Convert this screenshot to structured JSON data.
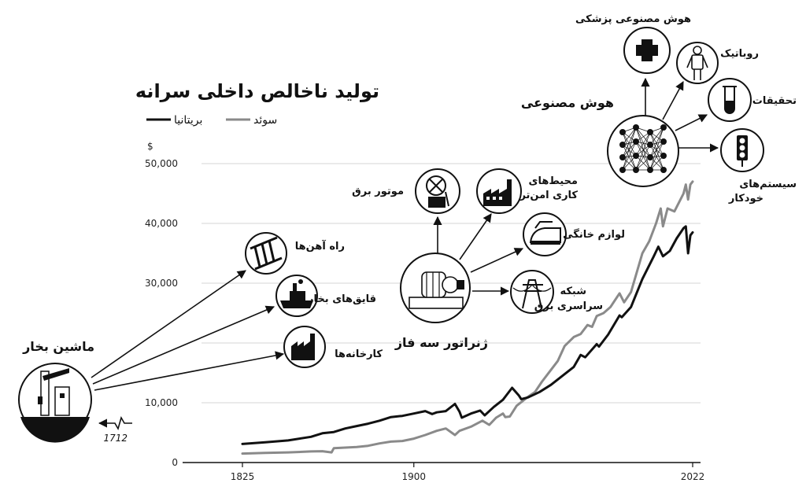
{
  "title": "تولید ناخالص داخلی سرانه",
  "legend": [
    {
      "name": "سوئد",
      "color": "#8a8a8a"
    },
    {
      "name": "بریتانیا",
      "color": "#111111"
    }
  ],
  "currency_label": "$",
  "chart_data": {
    "type": "line",
    "title": "تولید ناخالص داخلی سرانه",
    "xlabel": "",
    "ylabel": "$",
    "xlim": [
      1825,
      2022
    ],
    "ylim": [
      0,
      52000
    ],
    "grid": true,
    "legend_position": "top-left",
    "y_ticks": [
      0,
      10000,
      20000,
      30000,
      40000,
      50000
    ],
    "y_tick_labels": [
      "0",
      "10,000",
      "",
      "30,000",
      "40,000",
      "50,000"
    ],
    "x_ticks": [
      1825,
      1900,
      2022
    ],
    "x_tick_labels": [
      "1825",
      "1900",
      "2022"
    ],
    "series": [
      {
        "name": "سوئد",
        "color": "#8a8a8a",
        "x": [
          1825,
          1835,
          1845,
          1855,
          1860,
          1864,
          1865,
          1870,
          1875,
          1880,
          1885,
          1890,
          1895,
          1900,
          1905,
          1910,
          1914,
          1918,
          1920,
          1925,
          1930,
          1933,
          1936,
          1939,
          1940,
          1942,
          1945,
          1950,
          1953,
          1956,
          1960,
          1963,
          1966,
          1970,
          1973,
          1976,
          1978,
          1980,
          1983,
          1986,
          1990,
          1992,
          1995,
          2000,
          2003,
          2006,
          2008,
          2009,
          2011,
          2014,
          2016,
          2018,
          2019,
          2020,
          2021,
          2022
        ],
        "y": [
          1500,
          1600,
          1700,
          1850,
          1900,
          1700,
          2400,
          2500,
          2600,
          2800,
          3200,
          3500,
          3600,
          4000,
          4600,
          5300,
          5700,
          4600,
          5300,
          6000,
          7000,
          6300,
          7500,
          8200,
          7600,
          7700,
          9500,
          11000,
          11800,
          13500,
          15500,
          17000,
          19500,
          21000,
          21500,
          23000,
          22700,
          24500,
          25000,
          26000,
          28300,
          26800,
          28500,
          35000,
          37000,
          40000,
          42500,
          39500,
          42500,
          42000,
          43500,
          45000,
          46500,
          44000,
          46500,
          47000
        ]
      },
      {
        "name": "بریتانیا",
        "color": "#111111",
        "x": [
          1825,
          1835,
          1845,
          1855,
          1860,
          1865,
          1870,
          1875,
          1880,
          1885,
          1890,
          1895,
          1900,
          1905,
          1908,
          1910,
          1914,
          1918,
          1920,
          1921,
          1925,
          1929,
          1931,
          1935,
          1939,
          1940,
          1943,
          1946,
          1947,
          1950,
          1955,
          1960,
          1965,
          1970,
          1973,
          1975,
          1980,
          1981,
          1985,
          1990,
          1991,
          1995,
          2000,
          2005,
          2007,
          2009,
          2012,
          2015,
          2018,
          2019,
          2020,
          2021,
          2022
        ],
        "y": [
          3100,
          3400,
          3700,
          4300,
          4900,
          5100,
          5700,
          6100,
          6500,
          7000,
          7600,
          7800,
          8200,
          8600,
          8100,
          8400,
          8600,
          9800,
          8500,
          7500,
          8200,
          8700,
          7900,
          9300,
          10500,
          11000,
          12500,
          11200,
          10600,
          10900,
          11800,
          13000,
          14500,
          16000,
          18000,
          17600,
          19800,
          19400,
          21400,
          24600,
          24300,
          26000,
          30700,
          34500,
          36100,
          34500,
          35400,
          37500,
          39200,
          39500,
          35000,
          38000,
          38500
        ]
      }
    ]
  },
  "annotations": {
    "steam_engine": "ماشین بخار",
    "year_1712": "1712",
    "railways": "راه آهن‌ها",
    "steamboats": "قایق‌های بخار",
    "factories": "کارخانه‌ها",
    "three_phase": "ژنراتور سه فاز",
    "electric_motor": "موتور برق",
    "safe_work_1": "محیط‌های",
    "safe_work_2": "کاری امن‌تر",
    "appliances": "لوازم خانگی",
    "grid_1": "شبکه",
    "grid_2": "سراسری برق",
    "ai": "هوش مصنوعی",
    "ai_medicine": "هوش مصنوعی پزشکی",
    "robotics": "روباتیک",
    "research": "تحقیقات",
    "autonomous_1": "سیستم‌های",
    "autonomous_2": "خودکار"
  },
  "icons": {
    "steam_engine": "steam-engine-icon",
    "railways": "railway-track-icon",
    "steamboats": "steamboat-icon",
    "factories": "factory-icon",
    "three_phase": "generator-icon",
    "electric_motor": "electric-motor-icon",
    "safe_work": "industrial-building-icon",
    "appliances": "iron-icon",
    "grid": "power-pylon-icon",
    "ai": "neural-network-icon",
    "ai_medicine": "medical-cross-icon",
    "robotics": "robot-icon",
    "research": "test-tube-icon",
    "autonomous": "traffic-light-icon"
  }
}
